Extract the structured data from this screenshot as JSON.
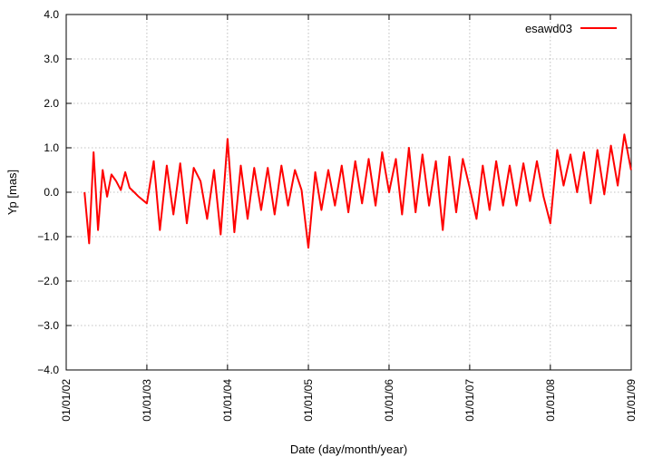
{
  "chart_data": {
    "type": "line",
    "xlabel": "Date (day/month/year)",
    "ylabel": "Yp [mas]",
    "ylim": [
      -4.0,
      4.0
    ],
    "yticks": [
      -4.0,
      -3.0,
      -2.0,
      -1.0,
      0.0,
      1.0,
      2.0,
      3.0,
      4.0
    ],
    "ytick_labels": [
      "−4.0",
      "−3.0",
      "−2.0",
      "−1.0",
      "0.0",
      "1.0",
      "2.0",
      "3.0",
      "4.0"
    ],
    "xlim": [
      "2002-01-01",
      "2009-01-01"
    ],
    "xticks": [
      "2002-01-01",
      "2003-01-01",
      "2004-01-01",
      "2005-01-01",
      "2006-01-01",
      "2007-01-01",
      "2008-01-01",
      "2009-01-01"
    ],
    "xtick_labels": [
      "01/01/02",
      "01/01/03",
      "01/01/04",
      "01/01/05",
      "01/01/06",
      "01/01/07",
      "01/01/08",
      "01/01/09"
    ],
    "grid": true,
    "legend_position": "top-right",
    "series": [
      {
        "name": "esawd03",
        "color": "#ff0000",
        "x": [
          "2002-03-25",
          "2002-04-15",
          "2002-05-05",
          "2002-05-25",
          "2002-06-15",
          "2002-07-05",
          "2002-07-25",
          "2002-08-15",
          "2002-09-05",
          "2002-09-25",
          "2002-10-15",
          "2002-11-05",
          "2002-11-25",
          "2003-01-01",
          "2003-02-01",
          "2003-03-01",
          "2003-04-01",
          "2003-05-01",
          "2003-06-01",
          "2003-07-01",
          "2003-08-01",
          "2003-09-01",
          "2003-10-01",
          "2003-11-01",
          "2003-12-01",
          "2004-01-01",
          "2004-02-01",
          "2004-03-01",
          "2004-04-01",
          "2004-05-01",
          "2004-06-01",
          "2004-07-01",
          "2004-08-01",
          "2004-09-01",
          "2004-10-01",
          "2004-11-01",
          "2004-12-01",
          "2005-01-01",
          "2005-02-01",
          "2005-03-01",
          "2005-04-01",
          "2005-05-01",
          "2005-06-01",
          "2005-07-01",
          "2005-08-01",
          "2005-09-01",
          "2005-10-01",
          "2005-11-01",
          "2005-12-01",
          "2006-01-01",
          "2006-02-01",
          "2006-03-01",
          "2006-04-01",
          "2006-05-01",
          "2006-06-01",
          "2006-07-01",
          "2006-08-01",
          "2006-09-01",
          "2006-10-01",
          "2006-11-01",
          "2006-12-01",
          "2007-01-01",
          "2007-02-01",
          "2007-03-01",
          "2007-04-01",
          "2007-05-01",
          "2007-06-01",
          "2007-07-01",
          "2007-08-01",
          "2007-09-01",
          "2007-10-01",
          "2007-11-01",
          "2007-12-01",
          "2008-01-01",
          "2008-02-01",
          "2008-03-01",
          "2008-04-01",
          "2008-05-01",
          "2008-06-01",
          "2008-07-01",
          "2008-08-01",
          "2008-09-01",
          "2008-10-01",
          "2008-11-01",
          "2008-12-01",
          "2008-12-31"
        ],
        "y": [
          0.0,
          -1.15,
          0.9,
          -0.85,
          0.5,
          -0.1,
          0.4,
          0.25,
          0.05,
          0.45,
          0.1,
          0.0,
          -0.1,
          -0.25,
          0.7,
          -0.85,
          0.6,
          -0.5,
          0.65,
          -0.7,
          0.55,
          0.25,
          -0.6,
          0.5,
          -0.95,
          1.2,
          -0.9,
          0.6,
          -0.6,
          0.55,
          -0.4,
          0.55,
          -0.5,
          0.6,
          -0.3,
          0.5,
          0.05,
          -1.25,
          0.45,
          -0.4,
          0.5,
          -0.3,
          0.6,
          -0.45,
          0.7,
          -0.25,
          0.75,
          -0.3,
          0.9,
          0.0,
          0.75,
          -0.5,
          1.0,
          -0.45,
          0.85,
          -0.3,
          0.7,
          -0.85,
          0.8,
          -0.45,
          0.75,
          0.1,
          -0.6,
          0.6,
          -0.4,
          0.7,
          -0.3,
          0.6,
          -0.3,
          0.65,
          -0.2,
          0.7,
          -0.1,
          -0.7,
          0.95,
          0.15,
          0.85,
          0.0,
          0.9,
          -0.25,
          0.95,
          -0.05,
          1.05,
          0.15,
          1.3,
          0.5
        ]
      }
    ]
  }
}
